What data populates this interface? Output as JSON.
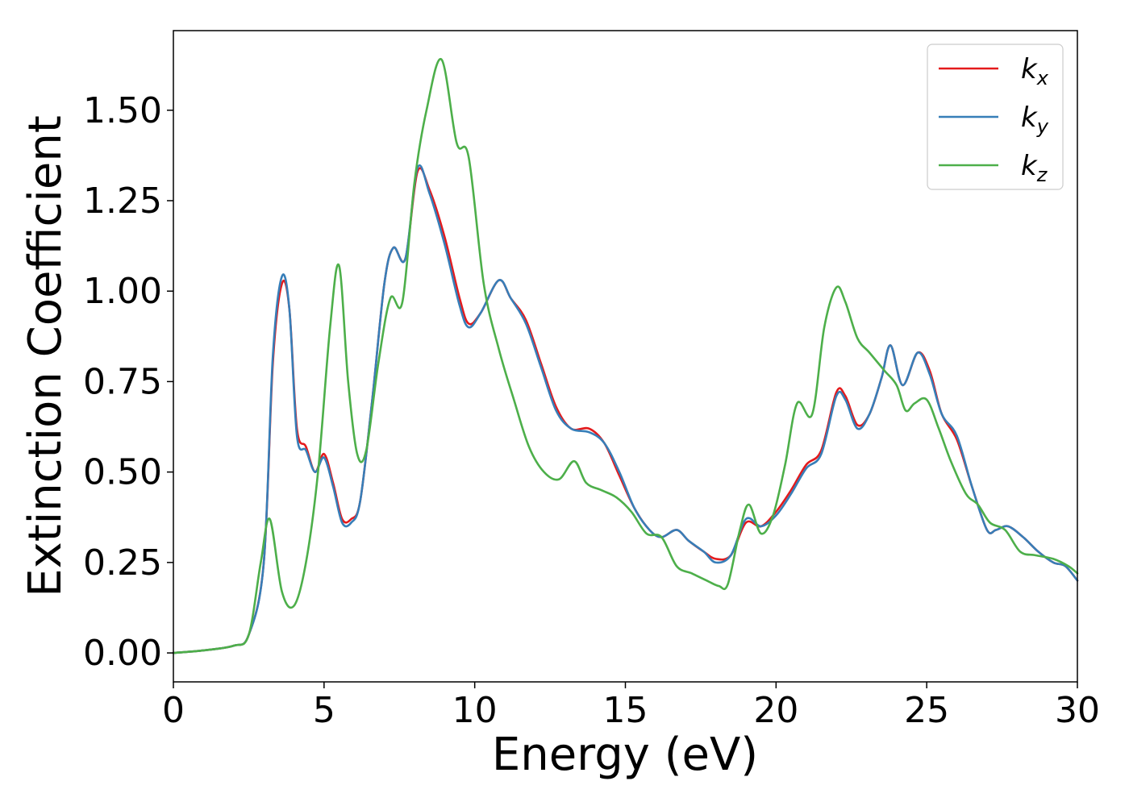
{
  "chart_data": {
    "type": "line",
    "title": "",
    "xlabel": "Energy (eV)",
    "ylabel": "Extinction Coefficient",
    "xlim": [
      0,
      30
    ],
    "ylim": [
      -0.08,
      1.72
    ],
    "x_ticks": [
      "0",
      "5",
      "10",
      "15",
      "20",
      "25",
      "30"
    ],
    "x_tick_values": [
      0,
      5,
      10,
      15,
      20,
      25,
      30
    ],
    "y_ticks": [
      "0.00",
      "0.25",
      "0.50",
      "0.75",
      "1.00",
      "1.25",
      "1.50"
    ],
    "y_tick_values": [
      0,
      0.25,
      0.5,
      0.75,
      1.0,
      1.25,
      1.5
    ],
    "grid": false,
    "legend_position": "top-right",
    "series": [
      {
        "name": "k_x",
        "legend_base": "k",
        "legend_sub": "x",
        "color": "#e41a1c",
        "x": [
          0,
          1,
          2,
          2.5,
          3,
          3.3,
          3.6,
          3.85,
          4.1,
          4.4,
          4.7,
          5.0,
          5.3,
          5.6,
          5.9,
          6.2,
          6.6,
          7.0,
          7.3,
          7.7,
          8.1,
          8.5,
          9.0,
          9.5,
          9.8,
          10.2,
          10.8,
          11.2,
          11.7,
          12.2,
          12.7,
          13.2,
          13.8,
          14.3,
          14.8,
          15.3,
          15.8,
          16.2,
          16.7,
          17.1,
          17.6,
          18.0,
          18.5,
          19.0,
          19.5,
          20.0,
          20.5,
          21.0,
          21.5,
          22.0,
          22.3,
          22.7,
          23.1,
          23.5,
          23.8,
          24.2,
          24.7,
          25.1,
          25.5,
          26.0,
          26.5,
          27.0,
          27.3,
          27.7,
          28.2,
          28.7,
          29.2,
          29.6,
          30.0
        ],
        "y": [
          0.0,
          0.007,
          0.02,
          0.05,
          0.25,
          0.8,
          1.02,
          0.95,
          0.62,
          0.57,
          0.5,
          0.55,
          0.47,
          0.37,
          0.37,
          0.42,
          0.7,
          1.02,
          1.12,
          1.09,
          1.33,
          1.28,
          1.15,
          0.98,
          0.91,
          0.94,
          1.03,
          0.98,
          0.92,
          0.8,
          0.68,
          0.62,
          0.62,
          0.58,
          0.49,
          0.4,
          0.34,
          0.32,
          0.34,
          0.31,
          0.28,
          0.26,
          0.27,
          0.36,
          0.35,
          0.39,
          0.45,
          0.52,
          0.56,
          0.72,
          0.71,
          0.63,
          0.66,
          0.76,
          0.85,
          0.74,
          0.83,
          0.78,
          0.66,
          0.59,
          0.46,
          0.34,
          0.34,
          0.35,
          0.32,
          0.28,
          0.25,
          0.24,
          0.2
        ]
      },
      {
        "name": "k_y",
        "legend_base": "k",
        "legend_sub": "y",
        "color": "#377eb8",
        "x": [
          0,
          1,
          2,
          2.5,
          3,
          3.3,
          3.6,
          3.85,
          4.1,
          4.4,
          4.7,
          5.0,
          5.3,
          5.6,
          5.9,
          6.2,
          6.6,
          7.0,
          7.3,
          7.7,
          8.1,
          8.5,
          9.0,
          9.5,
          9.8,
          10.2,
          10.8,
          11.2,
          11.7,
          12.2,
          12.7,
          13.2,
          13.8,
          14.3,
          14.8,
          15.3,
          15.8,
          16.2,
          16.7,
          17.1,
          17.6,
          18.0,
          18.5,
          19.0,
          19.5,
          20.0,
          20.5,
          21.0,
          21.5,
          22.0,
          22.3,
          22.7,
          23.1,
          23.5,
          23.8,
          24.2,
          24.7,
          25.1,
          25.5,
          26.0,
          26.5,
          27.0,
          27.3,
          27.7,
          28.2,
          28.7,
          29.2,
          29.6,
          30.0
        ],
        "y": [
          0.0,
          0.007,
          0.02,
          0.05,
          0.25,
          0.82,
          1.04,
          0.95,
          0.6,
          0.56,
          0.5,
          0.54,
          0.46,
          0.36,
          0.36,
          0.42,
          0.7,
          1.02,
          1.12,
          1.09,
          1.34,
          1.27,
          1.13,
          0.96,
          0.9,
          0.94,
          1.03,
          0.98,
          0.91,
          0.79,
          0.67,
          0.62,
          0.61,
          0.58,
          0.5,
          0.4,
          0.34,
          0.32,
          0.34,
          0.31,
          0.28,
          0.25,
          0.27,
          0.37,
          0.35,
          0.38,
          0.44,
          0.51,
          0.55,
          0.71,
          0.7,
          0.62,
          0.66,
          0.76,
          0.85,
          0.74,
          0.83,
          0.77,
          0.66,
          0.6,
          0.46,
          0.34,
          0.34,
          0.35,
          0.32,
          0.28,
          0.25,
          0.24,
          0.2
        ]
      },
      {
        "name": "k_z",
        "legend_base": "k",
        "legend_sub": "z",
        "color": "#4daf4a",
        "x": [
          0,
          1,
          2,
          2.5,
          2.9,
          3.2,
          3.6,
          4.0,
          4.4,
          4.8,
          5.2,
          5.5,
          5.8,
          6.1,
          6.4,
          6.8,
          7.2,
          7.6,
          8.0,
          8.4,
          8.9,
          9.4,
          9.8,
          10.3,
          10.8,
          11.3,
          11.8,
          12.3,
          12.8,
          13.3,
          13.7,
          14.2,
          14.7,
          15.2,
          15.7,
          16.2,
          16.7,
          17.2,
          17.7,
          18.1,
          18.4,
          18.8,
          19.1,
          19.5,
          19.9,
          20.3,
          20.7,
          21.2,
          21.6,
          22.0,
          22.3,
          22.7,
          23.1,
          23.6,
          24.0,
          24.3,
          24.6,
          25.0,
          25.4,
          25.8,
          26.3,
          26.7,
          27.1,
          27.6,
          28.1,
          28.6,
          29.2,
          29.7,
          30.0
        ],
        "y": [
          0.0,
          0.007,
          0.02,
          0.05,
          0.25,
          0.37,
          0.17,
          0.13,
          0.25,
          0.5,
          0.9,
          1.07,
          0.75,
          0.55,
          0.56,
          0.8,
          0.98,
          0.97,
          1.3,
          1.5,
          1.64,
          1.41,
          1.37,
          1.02,
          0.84,
          0.7,
          0.57,
          0.5,
          0.48,
          0.53,
          0.47,
          0.45,
          0.43,
          0.39,
          0.33,
          0.32,
          0.24,
          0.22,
          0.2,
          0.185,
          0.19,
          0.34,
          0.41,
          0.33,
          0.38,
          0.52,
          0.69,
          0.66,
          0.9,
          1.01,
          0.97,
          0.87,
          0.83,
          0.78,
          0.74,
          0.67,
          0.69,
          0.7,
          0.62,
          0.53,
          0.44,
          0.41,
          0.36,
          0.34,
          0.28,
          0.27,
          0.26,
          0.24,
          0.22
        ]
      }
    ]
  }
}
